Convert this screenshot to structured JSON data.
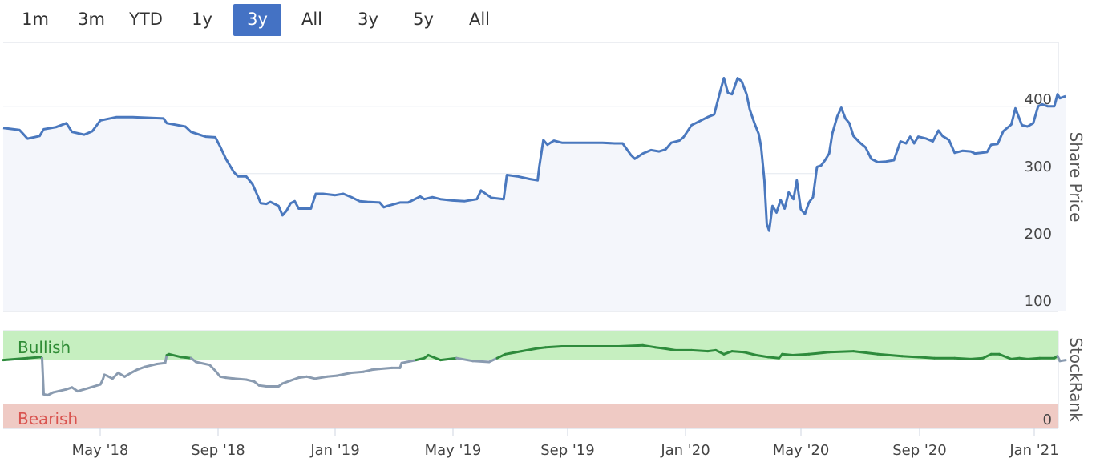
{
  "range_buttons": [
    {
      "label": "1m",
      "active": false
    },
    {
      "label": "3m",
      "active": false
    },
    {
      "label": "YTD",
      "active": false
    },
    {
      "label": "1y",
      "active": false
    },
    {
      "label": "3y",
      "active": true
    },
    {
      "label": "All",
      "active": false
    },
    {
      "label": "3y",
      "active": false
    },
    {
      "label": "5y",
      "active": false
    },
    {
      "label": "All",
      "active": false
    }
  ],
  "colors": {
    "accent": "#4472c4",
    "price_line": "#4a78be",
    "price_fill": "#f4f6fb",
    "bullish_zone": "#c6efc0",
    "bearish_zone": "#efcac4",
    "bullish_text": "#2e8b34",
    "bearish_text": "#d9534f",
    "rank_bullish_line": "#2e8b3c",
    "rank_neutral_line": "#8a9bb0"
  },
  "chart_data": [
    {
      "type": "line",
      "ylabel": "Share Price",
      "ylim": [
        95,
        495
      ],
      "y_ticks": [
        100,
        200,
        300,
        400
      ],
      "x_range": [
        0,
        1303
      ],
      "x_ticks": [
        {
          "label": "May '18",
          "x": 125
        },
        {
          "label": "Sep '18",
          "x": 272
        },
        {
          "label": "Jan '19",
          "x": 418
        },
        {
          "label": "May '19",
          "x": 565
        },
        {
          "label": "Sep '19",
          "x": 708
        },
        {
          "label": "Jan '20",
          "x": 855
        },
        {
          "label": "May '20",
          "x": 999
        },
        {
          "label": "Sep '20",
          "x": 1147
        },
        {
          "label": "Jan '21",
          "x": 1290
        }
      ],
      "series": [
        {
          "name": "Share Price",
          "x": [
            0,
            20,
            24,
            30,
            45,
            50,
            65,
            78,
            85,
            100,
            110,
            120,
            140,
            160,
            180,
            198,
            202,
            225,
            232,
            250,
            262,
            268,
            275,
            285,
            290,
            300,
            308,
            315,
            318,
            325,
            330,
            340,
            345,
            350,
            355,
            360,
            365,
            380,
            386,
            395,
            410,
            420,
            430,
            435,
            440,
            450,
            465,
            470,
            475,
            490,
            500,
            515,
            520,
            530,
            540,
            555,
            570,
            585,
            590,
            597,
            603,
            618,
            622,
            635,
            650,
            660,
            662,
            667,
            672,
            680,
            690,
            700,
            720,
            740,
            755,
            765,
            775,
            780,
            790,
            800,
            810,
            818,
            825,
            835,
            840,
            850,
            860,
            870,
            878,
            885,
            890,
            895,
            900,
            907,
            912,
            918,
            922,
            928,
            933,
            936,
            940,
            943,
            946,
            950,
            955,
            960,
            965,
            970,
            976,
            980,
            985,
            990,
            995,
            1000,
            1005,
            1010,
            1015,
            1020,
            1024,
            1030,
            1035,
            1040,
            1045,
            1050,
            1058,
            1065,
            1072,
            1080,
            1090,
            1100,
            1108,
            1115,
            1120,
            1125,
            1130,
            1140,
            1148,
            1155,
            1160,
            1168,
            1175,
            1185,
            1195,
            1200,
            1208,
            1215,
            1220,
            1228,
            1235,
            1245,
            1250,
            1258,
            1265,
            1272,
            1278,
            1283,
            1290,
            1298,
            1302,
            1305,
            1312
          ],
          "values": [
            368,
            365,
            360,
            352,
            356,
            366,
            369,
            375,
            362,
            358,
            363,
            379,
            384,
            384,
            383,
            382,
            375,
            370,
            362,
            355,
            354,
            340,
            322,
            302,
            296,
            296,
            284,
            265,
            256,
            255,
            258,
            252,
            238,
            245,
            256,
            259,
            248,
            248,
            270,
            270,
            268,
            270,
            265,
            262,
            259,
            258,
            257,
            250,
            252,
            257,
            257,
            266,
            262,
            265,
            262,
            260,
            259,
            262,
            275,
            269,
            264,
            262,
            298,
            296,
            292,
            290,
            310,
            350,
            343,
            349,
            346,
            346,
            346,
            346,
            345,
            345,
            328,
            322,
            330,
            335,
            333,
            336,
            346,
            349,
            354,
            372,
            378,
            384,
            388,
            420,
            442,
            420,
            418,
            442,
            437,
            418,
            395,
            374,
            359,
            340,
            290,
            225,
            215,
            252,
            242,
            261,
            248,
            272,
            262,
            290,
            247,
            240,
            257,
            265,
            310,
            312,
            320,
            330,
            360,
            385,
            398,
            382,
            375,
            356,
            346,
            339,
            322,
            317,
            318,
            320,
            348,
            345,
            355,
            345,
            355,
            352,
            348,
            364,
            356,
            350,
            331,
            334,
            333,
            330,
            331,
            332,
            343,
            344,
            363,
            373,
            397,
            372,
            370,
            375,
            400,
            403,
            400,
            400,
            418,
            412,
            415
          ]
        }
      ]
    },
    {
      "type": "line",
      "ylabel": "StockRank",
      "ylim": [
        0,
        100
      ],
      "y_ticks": [
        0
      ],
      "x_range": [
        0,
        1303
      ],
      "zones": [
        {
          "label": "Bullish",
          "from": 70,
          "to": 100
        },
        {
          "label": "Bearish",
          "from": 0,
          "to": 30
        }
      ],
      "series": [
        {
          "name": "StockRank",
          "x": [
            0,
            30,
            46,
            48,
            50,
            55,
            62,
            78,
            85,
            92,
            108,
            120,
            123,
            125,
            128,
            135,
            142,
            150,
            158,
            165,
            175,
            190,
            200,
            202,
            205,
            220,
            232,
            238,
            255,
            262,
            268,
            275,
            285,
            300,
            310,
            316,
            325,
            340,
            345,
            355,
            365,
            375,
            385,
            400,
            412,
            430,
            445,
            455,
            465,
            480,
            490,
            492,
            510,
            520,
            525,
            540,
            560,
            580,
            600,
            610,
            620,
            640,
            660,
            670,
            690,
            720,
            760,
            790,
            805,
            815,
            830,
            850,
            870,
            880,
            890,
            900,
            915,
            930,
            945,
            958,
            962,
            975,
            995,
            1020,
            1050,
            1080,
            1110,
            1130,
            1150,
            1175,
            1195,
            1210,
            1215,
            1220,
            1230,
            1245,
            1255,
            1265,
            1280,
            1298,
            1302,
            1305,
            1312
          ],
          "values": [
            70,
            72,
            73,
            72,
            35,
            34,
            37,
            40,
            42,
            38,
            42,
            45,
            50,
            55,
            54,
            51,
            57,
            53,
            57,
            60,
            63,
            66,
            67,
            75,
            76,
            73,
            72,
            68,
            65,
            59,
            53,
            52,
            51,
            50,
            48,
            44,
            43,
            43,
            46,
            49,
            52,
            53,
            51,
            53,
            54,
            57,
            58,
            60,
            61,
            62,
            62,
            67,
            70,
            72,
            75,
            70,
            72,
            69,
            68,
            72,
            76,
            79,
            82,
            83,
            84,
            84,
            84,
            85,
            83,
            82,
            80,
            80,
            79,
            80,
            76,
            79,
            78,
            75,
            73,
            72,
            76,
            75,
            76,
            78,
            79,
            76,
            74,
            73,
            72,
            72,
            71,
            72,
            74,
            76,
            76,
            71,
            72,
            71,
            72,
            72,
            74,
            69,
            70
          ]
        }
      ]
    }
  ]
}
